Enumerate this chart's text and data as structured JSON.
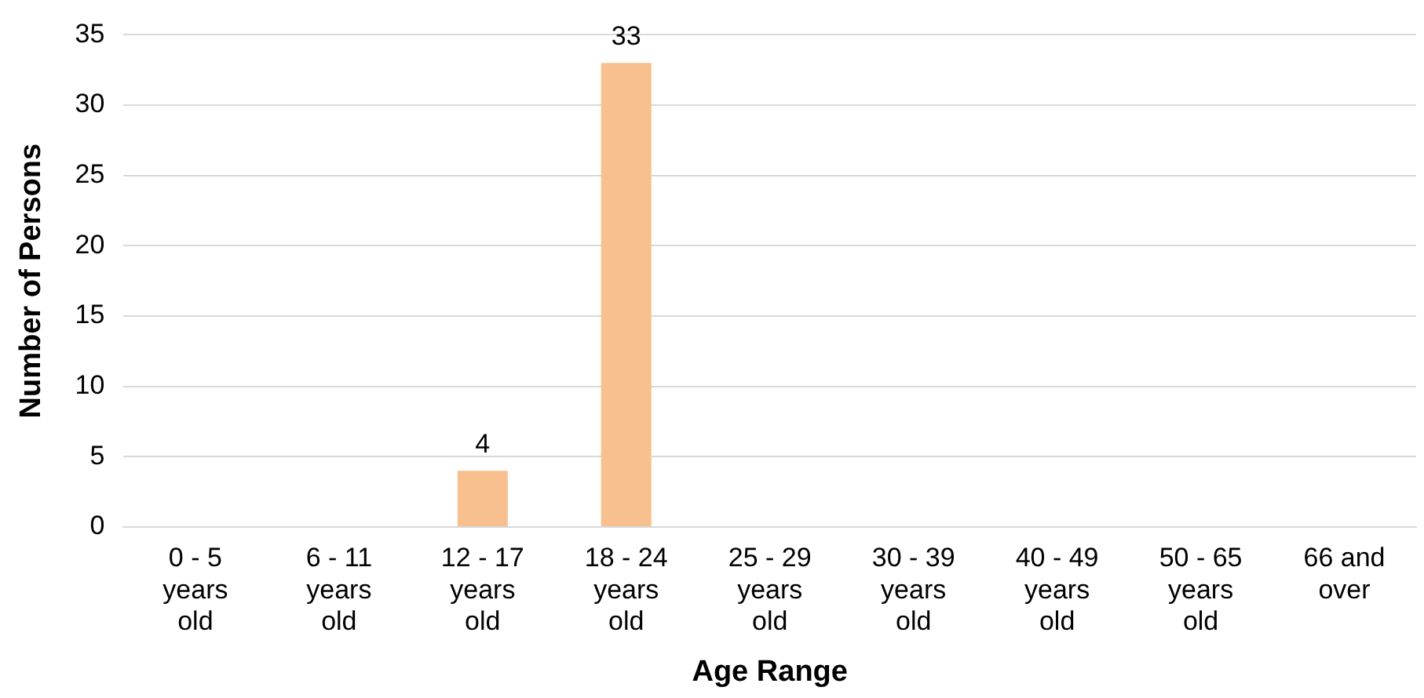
{
  "chart_data": {
    "type": "bar",
    "xlabel": "Age Range",
    "ylabel": "Number of Persons",
    "categories": [
      "0 - 5\nyears\nold",
      "6 - 11\nyears\nold",
      "12 - 17\nyears\nold",
      "18 - 24\nyears\nold",
      "25 - 29\nyears\nold",
      "30 - 39\nyears\nold",
      "40 - 49\nyears\nold",
      "50 - 65\nyears\nold",
      "66 and\nover"
    ],
    "values": [
      0,
      0,
      4,
      33,
      0,
      0,
      0,
      0,
      0
    ],
    "value_labels": [
      null,
      null,
      "4",
      "33",
      null,
      null,
      null,
      null,
      null
    ],
    "color": "#f8c08f",
    "ylim": [
      0,
      35
    ],
    "yticks": [
      0,
      5,
      10,
      15,
      20,
      25,
      30,
      35
    ],
    "grid": "y",
    "legend": false
  }
}
